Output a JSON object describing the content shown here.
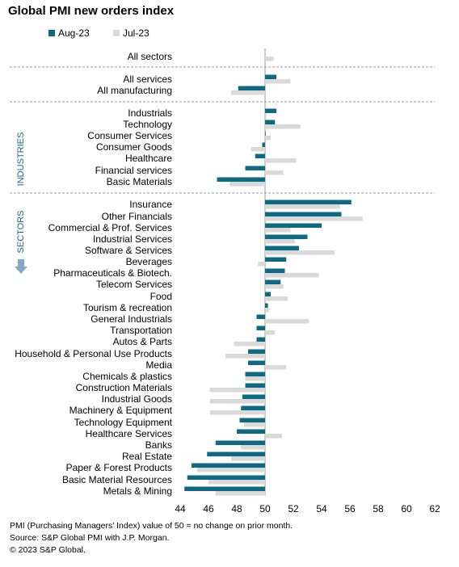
{
  "chart_data": {
    "type": "bar",
    "orientation": "horizontal",
    "title": "Global PMI new orders index",
    "series": [
      {
        "name": "Aug-23",
        "color": "#0e6a82",
        "values": [
          null,
          50.8,
          48.1,
          50.8,
          50.7,
          50.0,
          49.8,
          49.3,
          48.6,
          46.6,
          56.1,
          55.4,
          54.0,
          53.0,
          52.4,
          51.5,
          51.4,
          51.1,
          50.4,
          50.2,
          49.4,
          49.4,
          49.4,
          48.8,
          48.8,
          48.6,
          48.6,
          48.4,
          48.3,
          48.2,
          48.0,
          46.5,
          45.9,
          44.8,
          44.5,
          44.3
        ]
      },
      {
        "name": "Jul-23",
        "color": "#d9d9d9",
        "values": [
          50.6,
          51.8,
          47.6,
          50.1,
          52.5,
          50.4,
          49.0,
          52.2,
          51.3,
          47.5,
          55.3,
          56.9,
          51.8,
          52.1,
          54.9,
          49.5,
          53.8,
          51.3,
          51.6,
          50.3,
          53.1,
          50.7,
          47.8,
          47.2,
          51.5,
          48.6,
          46.1,
          46.1,
          46.1,
          48.5,
          51.2,
          48.3,
          47.6,
          45.2,
          46.0,
          46.5
        ]
      }
    ],
    "categories": [
      "All sectors",
      "All services",
      "All manufacturing",
      "Industrials",
      "Technology",
      "Consumer Services",
      "Consumer Goods",
      "Healthcare",
      "Financial services",
      "Basic Materials",
      "Insurance",
      "Other Financials",
      "Commercial & Prof. Services",
      "Industrial Services",
      "Software & Services",
      "Beverages",
      "Pharmaceuticals & Biotech.",
      "Telecom Services",
      "Food",
      "Tourism & recreation",
      "General Industrials",
      "Transportation",
      "Autos & Parts",
      "Household & Personal Use Products",
      "Media",
      "Chemicals & plastics",
      "Construction Materials",
      "Industrial Goods",
      "Machinery & Equipment",
      "Technology Equipment",
      "Healthcare Services",
      "Banks",
      "Real Estate",
      "Paper & Forest Products",
      "Basic Material Resources",
      "Metals & Mining"
    ],
    "group_labels": [
      "INDUSTRIES",
      "SECTORS"
    ],
    "xlim": [
      44,
      62
    ],
    "xticks": [
      "44",
      "46",
      "48",
      "50",
      "52",
      "54",
      "56",
      "58",
      "60",
      "62"
    ],
    "reference_value": 50,
    "legend_position": "top-left",
    "grid": false
  },
  "footer": {
    "note": "PMI (Purchasing Managers' Index) value of 50 = no change on prior month.",
    "source": "Source: S&P Global PMI with J.P. Morgan.",
    "copyright": "© 2023 S&P Global."
  }
}
